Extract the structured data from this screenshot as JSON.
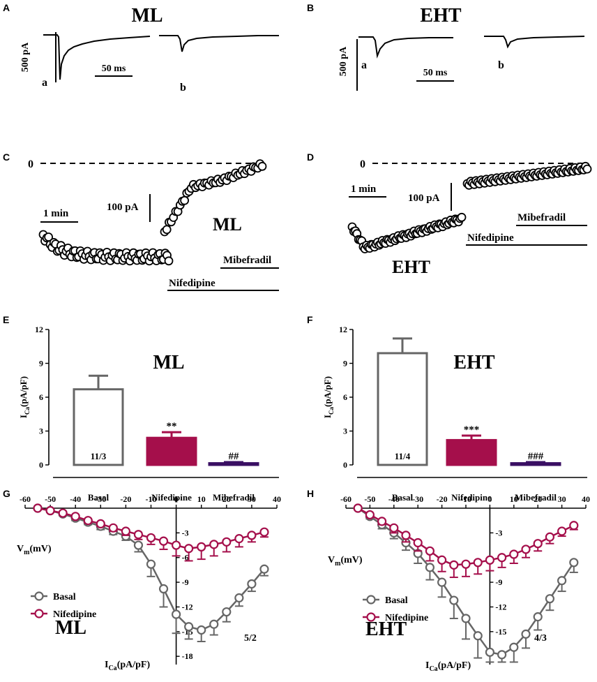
{
  "panel_letters": {
    "A": "A",
    "B": "B",
    "C": "C",
    "D": "D",
    "E": "E",
    "F": "F",
    "G": "G",
    "H": "H"
  },
  "colors": {
    "basal": "#666666",
    "nifedipine": "#a50f4b",
    "mibefradil": "#3a0f63",
    "trace": "#000000"
  },
  "panel_A": {
    "title": "ML",
    "scale_y": "500 pA",
    "scale_x": "50 ms",
    "trace_a": "a",
    "trace_b": "b"
  },
  "panel_B": {
    "title": "EHT",
    "scale_y": "500 pA",
    "scale_x": "50 ms",
    "trace_a": "a",
    "trace_b": "b"
  },
  "panel_C": {
    "zero": "0",
    "time_scale": "1 min",
    "current_scale": "100 pA",
    "label": "ML",
    "drug1": "Nifedipine",
    "drug2": "Mibefradil"
  },
  "panel_D": {
    "zero": "0",
    "time_scale": "1 min",
    "current_scale": "100 pA",
    "label": "EHT",
    "drug1": "Nifedipine",
    "drug2": "Mibefradil"
  },
  "chart_data": [
    {
      "panel": "E",
      "type": "bar",
      "title": "ML",
      "ylabel_main": "I",
      "ylabel_sub": "Ca",
      "ylabel_rest": "(pA/pF)",
      "ylim": [
        0,
        12
      ],
      "yticks": [
        "0",
        "3",
        "6",
        "9",
        "12"
      ],
      "categories": [
        "Basal",
        "Nifedipine",
        "Mibefradil"
      ],
      "values": [
        6.7,
        2.4,
        0.15
      ],
      "errors": [
        1.2,
        0.5,
        0.1
      ],
      "n_label": "11/3",
      "sig": [
        "",
        "**",
        "##"
      ]
    },
    {
      "panel": "F",
      "type": "bar",
      "title": "EHT",
      "ylabel_main": "I",
      "ylabel_sub": "Ca",
      "ylabel_rest": "(pA/pF)",
      "ylim": [
        0,
        12
      ],
      "yticks": [
        "0",
        "3",
        "6",
        "9",
        "12"
      ],
      "categories": [
        "Basal",
        "Nifedipine",
        "Mibefradil"
      ],
      "values": [
        9.9,
        2.2,
        0.15
      ],
      "errors": [
        1.3,
        0.4,
        0.1
      ],
      "n_label": "11/4",
      "sig": [
        "",
        "***",
        "###"
      ]
    },
    {
      "panel": "G",
      "type": "line",
      "label": "ML",
      "n_label": "5/2",
      "xlabel_main": "V",
      "xlabel_sub": "m",
      "xlabel_rest": "(mV)",
      "ylabel_main": "I",
      "ylabel_sub": "Ca",
      "ylabel_rest": "(pA/pF)",
      "xlim": [
        -60,
        40
      ],
      "ylim": [
        -19,
        0.5
      ],
      "xticks": [
        "-60",
        "-50",
        "-40",
        "-30",
        "-20",
        "-10",
        "0",
        "10",
        "20",
        "30",
        "40"
      ],
      "yticks": [
        "-3",
        "-6",
        "-9",
        "-12",
        "-15",
        "-18"
      ],
      "x": [
        -55,
        -50,
        -45,
        -40,
        -35,
        -30,
        -25,
        -20,
        -15,
        -10,
        -5,
        0,
        5,
        10,
        15,
        20,
        25,
        30,
        35
      ],
      "series": [
        {
          "name": "Basal",
          "values": [
            0,
            -0.3,
            -0.7,
            -1.2,
            -1.7,
            -2.2,
            -2.8,
            -3.4,
            -4.5,
            -6.8,
            -9.8,
            -12.9,
            -14.4,
            -14.8,
            -14.1,
            -12.6,
            -10.9,
            -9.2,
            -7.4
          ],
          "errors": [
            0.1,
            0.2,
            0.2,
            0.3,
            0.3,
            0.4,
            0.4,
            0.5,
            0.8,
            1.5,
            2.2,
            2.3,
            1.5,
            1.4,
            1.3,
            1.2,
            1.0,
            0.9,
            0.8
          ]
        },
        {
          "name": "Nifedipine",
          "values": [
            0,
            -0.3,
            -0.6,
            -1.0,
            -1.5,
            -1.9,
            -2.4,
            -2.8,
            -3.2,
            -3.6,
            -4.0,
            -4.5,
            -4.9,
            -4.7,
            -4.4,
            -4.1,
            -3.7,
            -3.3,
            -2.9
          ],
          "errors": [
            0.1,
            0.1,
            0.2,
            0.2,
            0.3,
            0.3,
            0.4,
            0.5,
            0.6,
            0.8,
            1.0,
            1.3,
            1.5,
            1.5,
            1.4,
            1.2,
            1.0,
            0.8,
            0.6
          ]
        }
      ]
    },
    {
      "panel": "H",
      "type": "line",
      "label": "EHT",
      "n_label": "4/3",
      "xlabel_main": "V",
      "xlabel_sub": "m",
      "xlabel_rest": "(mV)",
      "ylabel_main": "I",
      "ylabel_sub": "Ca",
      "ylabel_rest": "(pA/pF)",
      "xlim": [
        -60,
        40
      ],
      "ylim": [
        -19,
        0.5
      ],
      "xticks": [
        "-60",
        "-50",
        "-40",
        "-30",
        "-20",
        "-10",
        "0",
        "10",
        "20",
        "30",
        "40"
      ],
      "yticks": [
        "-3",
        "-6",
        "-9",
        "-12",
        "-15"
      ],
      "x": [
        -55,
        -50,
        -45,
        -40,
        -35,
        -30,
        -25,
        -20,
        -15,
        -10,
        -5,
        0,
        5,
        10,
        15,
        20,
        25,
        30,
        35
      ],
      "series": [
        {
          "name": "Basal",
          "values": [
            0,
            -1.0,
            -2.0,
            -3.0,
            -4.2,
            -5.5,
            -7.2,
            -9.0,
            -11.2,
            -13.4,
            -15.5,
            -17.5,
            -17.8,
            -16.9,
            -15.3,
            -13.2,
            -11.0,
            -8.8,
            -6.6
          ],
          "errors": [
            0.1,
            0.3,
            0.5,
            0.7,
            0.9,
            1.2,
            1.5,
            1.8,
            2.2,
            2.5,
            2.7,
            1.2,
            0.9,
            1.8,
            1.7,
            1.6,
            1.4,
            1.3,
            1.2
          ]
        },
        {
          "name": "Nifedipine",
          "values": [
            0,
            -0.8,
            -1.6,
            -2.4,
            -3.3,
            -4.2,
            -5.2,
            -6.3,
            -6.9,
            -6.8,
            -6.6,
            -6.3,
            -6.0,
            -5.6,
            -5.0,
            -4.3,
            -3.5,
            -2.8,
            -2.1
          ],
          "errors": [
            0.1,
            0.3,
            0.4,
            0.6,
            0.8,
            1.0,
            1.2,
            1.4,
            1.5,
            1.5,
            1.4,
            1.3,
            1.2,
            1.1,
            1.0,
            0.9,
            0.8,
            0.6,
            0.5
          ]
        }
      ]
    }
  ]
}
